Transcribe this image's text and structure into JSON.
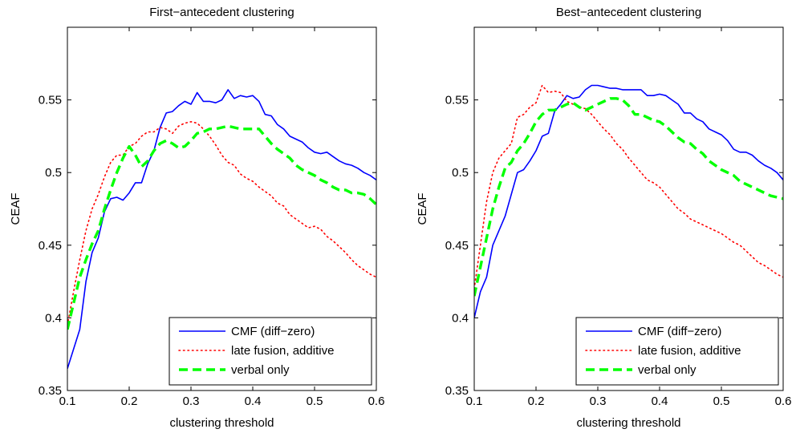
{
  "chart_data": [
    {
      "type": "line",
      "title": "First−antecedent clustering",
      "xlabel": "clustering threshold",
      "ylabel": "CEAF",
      "xlim": [
        0.1,
        0.6
      ],
      "ylim": [
        0.35,
        0.6
      ],
      "xticks": [
        0.1,
        0.2,
        0.3,
        0.4,
        0.5,
        0.6
      ],
      "xtick_labels": [
        "0.1",
        "0.2",
        "0.3",
        "0.4",
        "0.5",
        "0.6"
      ],
      "yticks": [
        0.35,
        0.4,
        0.45,
        0.5,
        0.55
      ],
      "ytick_labels": [
        "0.35",
        "0.4",
        "0.45",
        "0.5",
        "0.55"
      ],
      "grid": false,
      "legend_position": "bottom-right",
      "series": [
        {
          "name": "CMF (diff−zero)",
          "color": "#0000ff",
          "style": "solid",
          "x": [
            0.1,
            0.12,
            0.13,
            0.14,
            0.15,
            0.16,
            0.17,
            0.18,
            0.19,
            0.2,
            0.21,
            0.22,
            0.23,
            0.24,
            0.25,
            0.26,
            0.27,
            0.28,
            0.29,
            0.3,
            0.31,
            0.32,
            0.33,
            0.34,
            0.35,
            0.36,
            0.37,
            0.38,
            0.39,
            0.4,
            0.41,
            0.42,
            0.43,
            0.44,
            0.45,
            0.46,
            0.47,
            0.48,
            0.49,
            0.5,
            0.51,
            0.52,
            0.53,
            0.54,
            0.55,
            0.56,
            0.57,
            0.58,
            0.59,
            0.6
          ],
          "y": [
            0.365,
            0.392,
            0.425,
            0.445,
            0.455,
            0.473,
            0.482,
            0.483,
            0.481,
            0.486,
            0.493,
            0.493,
            0.506,
            0.515,
            0.531,
            0.541,
            0.542,
            0.546,
            0.549,
            0.547,
            0.555,
            0.549,
            0.549,
            0.548,
            0.55,
            0.557,
            0.551,
            0.553,
            0.552,
            0.553,
            0.549,
            0.54,
            0.539,
            0.533,
            0.53,
            0.525,
            0.523,
            0.521,
            0.517,
            0.514,
            0.513,
            0.514,
            0.511,
            0.508,
            0.506,
            0.505,
            0.503,
            0.5,
            0.498,
            0.495
          ]
        },
        {
          "name": "late fusion, additive",
          "color": "#ff0000",
          "style": "dotted",
          "x": [
            0.1,
            0.11,
            0.12,
            0.13,
            0.14,
            0.15,
            0.16,
            0.17,
            0.18,
            0.19,
            0.2,
            0.21,
            0.22,
            0.23,
            0.24,
            0.25,
            0.26,
            0.27,
            0.28,
            0.29,
            0.3,
            0.31,
            0.32,
            0.33,
            0.34,
            0.35,
            0.36,
            0.37,
            0.38,
            0.39,
            0.4,
            0.41,
            0.42,
            0.43,
            0.44,
            0.45,
            0.46,
            0.47,
            0.48,
            0.49,
            0.5,
            0.51,
            0.52,
            0.53,
            0.54,
            0.55,
            0.56,
            0.57,
            0.58,
            0.59,
            0.6
          ],
          "y": [
            0.395,
            0.418,
            0.44,
            0.46,
            0.475,
            0.485,
            0.497,
            0.507,
            0.512,
            0.512,
            0.518,
            0.52,
            0.525,
            0.528,
            0.528,
            0.531,
            0.53,
            0.527,
            0.532,
            0.534,
            0.535,
            0.534,
            0.53,
            0.525,
            0.519,
            0.512,
            0.507,
            0.505,
            0.499,
            0.496,
            0.494,
            0.49,
            0.487,
            0.484,
            0.479,
            0.477,
            0.471,
            0.468,
            0.465,
            0.462,
            0.463,
            0.461,
            0.456,
            0.453,
            0.449,
            0.445,
            0.44,
            0.436,
            0.433,
            0.43,
            0.428
          ]
        },
        {
          "name": "verbal only",
          "color": "#00ff00",
          "style": "dashed",
          "x": [
            0.1,
            0.11,
            0.12,
            0.13,
            0.14,
            0.15,
            0.16,
            0.17,
            0.18,
            0.19,
            0.2,
            0.21,
            0.22,
            0.23,
            0.24,
            0.25,
            0.26,
            0.27,
            0.28,
            0.29,
            0.3,
            0.31,
            0.32,
            0.33,
            0.34,
            0.35,
            0.36,
            0.37,
            0.38,
            0.39,
            0.4,
            0.41,
            0.42,
            0.43,
            0.44,
            0.45,
            0.46,
            0.47,
            0.48,
            0.49,
            0.5,
            0.51,
            0.52,
            0.53,
            0.54,
            0.55,
            0.56,
            0.57,
            0.58,
            0.59,
            0.6
          ],
          "y": [
            0.392,
            0.41,
            0.428,
            0.44,
            0.451,
            0.46,
            0.475,
            0.488,
            0.5,
            0.51,
            0.518,
            0.512,
            0.504,
            0.508,
            0.515,
            0.52,
            0.522,
            0.52,
            0.517,
            0.518,
            0.522,
            0.527,
            0.528,
            0.53,
            0.53,
            0.531,
            0.532,
            0.531,
            0.53,
            0.53,
            0.53,
            0.53,
            0.525,
            0.52,
            0.516,
            0.513,
            0.51,
            0.505,
            0.502,
            0.5,
            0.498,
            0.495,
            0.493,
            0.49,
            0.488,
            0.488,
            0.486,
            0.486,
            0.485,
            0.482,
            0.478
          ]
        }
      ]
    },
    {
      "type": "line",
      "title": "Best−antecedent clustering",
      "xlabel": "clustering threshold",
      "ylabel": "CEAF",
      "xlim": [
        0.1,
        0.6
      ],
      "ylim": [
        0.35,
        0.6
      ],
      "xticks": [
        0.1,
        0.2,
        0.3,
        0.4,
        0.5,
        0.6
      ],
      "xtick_labels": [
        "0.1",
        "0.2",
        "0.3",
        "0.4",
        "0.5",
        "0.6"
      ],
      "yticks": [
        0.35,
        0.4,
        0.45,
        0.5,
        0.55
      ],
      "ytick_labels": [
        "0.35",
        "0.4",
        "0.45",
        "0.5",
        "0.55"
      ],
      "grid": false,
      "legend_position": "bottom-right",
      "series": [
        {
          "name": "CMF (diff−zero)",
          "color": "#0000ff",
          "style": "solid",
          "x": [
            0.1,
            0.11,
            0.12,
            0.13,
            0.14,
            0.15,
            0.16,
            0.17,
            0.18,
            0.19,
            0.2,
            0.21,
            0.22,
            0.23,
            0.24,
            0.25,
            0.26,
            0.27,
            0.28,
            0.29,
            0.3,
            0.31,
            0.32,
            0.33,
            0.34,
            0.35,
            0.36,
            0.37,
            0.38,
            0.39,
            0.4,
            0.41,
            0.42,
            0.43,
            0.44,
            0.45,
            0.46,
            0.47,
            0.48,
            0.49,
            0.5,
            0.51,
            0.52,
            0.53,
            0.54,
            0.55,
            0.56,
            0.57,
            0.58,
            0.59,
            0.6
          ],
          "y": [
            0.4,
            0.418,
            0.428,
            0.45,
            0.46,
            0.47,
            0.485,
            0.5,
            0.502,
            0.508,
            0.515,
            0.525,
            0.527,
            0.542,
            0.547,
            0.553,
            0.551,
            0.552,
            0.557,
            0.56,
            0.56,
            0.559,
            0.558,
            0.558,
            0.557,
            0.557,
            0.557,
            0.557,
            0.553,
            0.553,
            0.554,
            0.553,
            0.55,
            0.547,
            0.541,
            0.541,
            0.537,
            0.535,
            0.53,
            0.528,
            0.526,
            0.522,
            0.516,
            0.514,
            0.514,
            0.512,
            0.508,
            0.505,
            0.503,
            0.5,
            0.495
          ]
        },
        {
          "name": "late fusion, additive",
          "color": "#ff0000",
          "style": "dotted",
          "x": [
            0.1,
            0.11,
            0.12,
            0.13,
            0.14,
            0.15,
            0.16,
            0.17,
            0.18,
            0.19,
            0.2,
            0.21,
            0.22,
            0.23,
            0.24,
            0.25,
            0.26,
            0.27,
            0.28,
            0.29,
            0.3,
            0.31,
            0.32,
            0.33,
            0.34,
            0.35,
            0.36,
            0.37,
            0.38,
            0.39,
            0.4,
            0.41,
            0.42,
            0.43,
            0.44,
            0.45,
            0.46,
            0.47,
            0.48,
            0.49,
            0.5,
            0.51,
            0.52,
            0.53,
            0.54,
            0.55,
            0.56,
            0.57,
            0.58,
            0.59,
            0.6
          ],
          "y": [
            0.42,
            0.45,
            0.48,
            0.5,
            0.51,
            0.515,
            0.52,
            0.538,
            0.54,
            0.545,
            0.548,
            0.56,
            0.555,
            0.556,
            0.555,
            0.549,
            0.547,
            0.545,
            0.544,
            0.54,
            0.535,
            0.53,
            0.526,
            0.52,
            0.516,
            0.51,
            0.505,
            0.5,
            0.495,
            0.493,
            0.49,
            0.485,
            0.48,
            0.475,
            0.472,
            0.468,
            0.466,
            0.464,
            0.462,
            0.46,
            0.458,
            0.455,
            0.452,
            0.45,
            0.446,
            0.442,
            0.438,
            0.436,
            0.433,
            0.43,
            0.428
          ]
        },
        {
          "name": "verbal only",
          "color": "#00ff00",
          "style": "dashed",
          "x": [
            0.1,
            0.11,
            0.12,
            0.13,
            0.14,
            0.15,
            0.16,
            0.17,
            0.18,
            0.19,
            0.2,
            0.21,
            0.22,
            0.23,
            0.24,
            0.25,
            0.26,
            0.27,
            0.28,
            0.29,
            0.3,
            0.31,
            0.32,
            0.33,
            0.34,
            0.35,
            0.36,
            0.37,
            0.38,
            0.39,
            0.4,
            0.41,
            0.42,
            0.43,
            0.44,
            0.45,
            0.46,
            0.47,
            0.48,
            0.49,
            0.5,
            0.51,
            0.52,
            0.53,
            0.54,
            0.55,
            0.56,
            0.57,
            0.58,
            0.59,
            0.6
          ],
          "y": [
            0.415,
            0.435,
            0.455,
            0.475,
            0.49,
            0.503,
            0.507,
            0.515,
            0.52,
            0.527,
            0.535,
            0.54,
            0.543,
            0.543,
            0.545,
            0.547,
            0.548,
            0.545,
            0.543,
            0.545,
            0.547,
            0.549,
            0.551,
            0.551,
            0.55,
            0.546,
            0.54,
            0.54,
            0.538,
            0.536,
            0.535,
            0.532,
            0.528,
            0.524,
            0.521,
            0.52,
            0.516,
            0.513,
            0.508,
            0.505,
            0.502,
            0.5,
            0.498,
            0.494,
            0.492,
            0.49,
            0.488,
            0.486,
            0.484,
            0.483,
            0.482
          ]
        }
      ]
    }
  ]
}
